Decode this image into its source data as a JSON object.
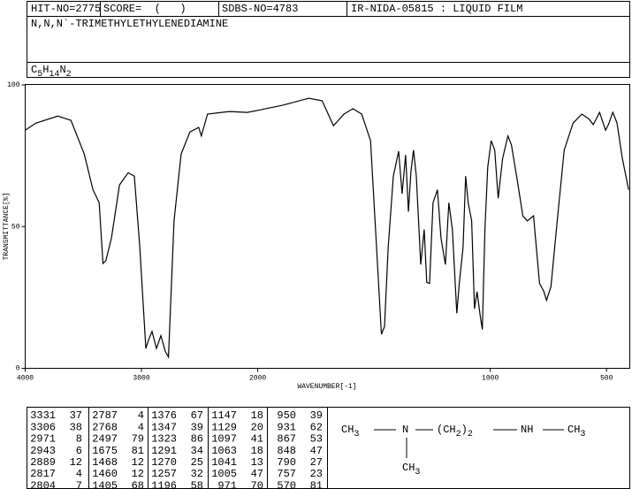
{
  "header": {
    "hit_no": "HIT-NO=2775",
    "score": "SCORE=  (   )",
    "sdbs_no": "SDBS-NO=4783",
    "method": "IR-NIDA-05815 : LIQUID FILM",
    "compound": "N,N,N`-TRIMETHYLETHYLENEDIAMINE",
    "formula": [
      "C",
      "5",
      "H",
      "14",
      "N",
      "2"
    ]
  },
  "chart_data": {
    "type": "line",
    "color": "#000000",
    "xlabel": "WAVENUMBER[-1]",
    "ylabel": "TRANSMITTANCE[%]",
    "xlim": [
      4000,
      400
    ],
    "x_scale_break": 2000,
    "ylim": [
      0,
      100
    ],
    "xticks": [
      4000,
      3000,
      2000,
      1000,
      500
    ],
    "yticks": [
      0,
      50,
      100
    ],
    "grid": false,
    "x": [
      4000,
      3909,
      3720,
      3606,
      3492,
      3417,
      3364,
      3331,
      3306,
      3258,
      3189,
      3114,
      3061,
      3015,
      2962,
      2939,
      2909,
      2871,
      2833,
      2795,
      2768,
      2720,
      2659,
      2583,
      2508,
      2485,
      2432,
      2242,
      2091,
      2000,
      1894,
      1780,
      1723,
      1674,
      1629,
      1591,
      1553,
      1515,
      1485,
      1468,
      1455,
      1439,
      1417,
      1394,
      1379,
      1364,
      1352,
      1341,
      1330,
      1318,
      1299,
      1284,
      1273,
      1261,
      1246,
      1227,
      1212,
      1193,
      1178,
      1163,
      1144,
      1133,
      1117,
      1106,
      1095,
      1080,
      1068,
      1057,
      1042,
      1034,
      1023,
      1011,
      996,
      981,
      966,
      947,
      924,
      909,
      883,
      860,
      841,
      814,
      788,
      769,
      758,
      739,
      712,
      682,
      644,
      606,
      576,
      557,
      530,
      504,
      492,
      473,
      455,
      432,
      405
    ],
    "values": [
      84,
      86.5,
      89,
      87.5,
      75.6,
      63,
      58.4,
      37,
      38,
      46,
      64.7,
      69,
      67.8,
      43,
      7,
      10,
      13,
      7,
      11.5,
      6,
      4,
      52,
      75.6,
      83.4,
      85,
      82,
      89.7,
      90.6,
      90.3,
      91,
      92.8,
      95.3,
      94.4,
      85.6,
      89.7,
      91.6,
      89.7,
      80.3,
      36.6,
      12,
      14.7,
      42.8,
      67.8,
      76.6,
      61.6,
      75.3,
      55.3,
      69.4,
      77,
      67.8,
      36.6,
      49,
      30.3,
      30,
      58.4,
      63,
      46,
      36.6,
      58.4,
      49,
      19.4,
      30.3,
      42.8,
      67.8,
      58.4,
      52,
      21,
      27,
      17.8,
      13.7,
      49,
      71,
      80.3,
      77,
      60,
      74,
      82,
      78.8,
      66,
      53.8,
      52,
      53.8,
      30,
      27,
      24,
      28.8,
      52,
      77,
      86.5,
      89.7,
      88,
      86,
      90.3,
      84,
      86,
      90.3,
      86.6,
      74,
      63
    ]
  },
  "peak_table": {
    "columns": [
      [
        [
          "3331",
          "37"
        ],
        [
          "3306",
          "38"
        ],
        [
          "2971",
          "8"
        ],
        [
          "2943",
          "6"
        ],
        [
          "2889",
          "12"
        ],
        [
          "2817",
          "4"
        ],
        [
          "2804",
          "7"
        ]
      ],
      [
        [
          "2787",
          "4"
        ],
        [
          "2768",
          "4"
        ],
        [
          "2497",
          "79"
        ],
        [
          "1675",
          "81"
        ],
        [
          "1468",
          "12"
        ],
        [
          "1460",
          "12"
        ],
        [
          "1405",
          "68"
        ]
      ],
      [
        [
          "1376",
          "67"
        ],
        [
          "1347",
          "39"
        ],
        [
          "1323",
          "86"
        ],
        [
          "1291",
          "34"
        ],
        [
          "1270",
          "25"
        ],
        [
          "1257",
          "32"
        ],
        [
          "1196",
          "58"
        ]
      ],
      [
        [
          "1147",
          "18"
        ],
        [
          "1129",
          "20"
        ],
        [
          "1097",
          "41"
        ],
        [
          "1063",
          "18"
        ],
        [
          "1041",
          "13"
        ],
        [
          "1005",
          "47"
        ],
        [
          "971",
          "70"
        ]
      ],
      [
        [
          "950",
          "39"
        ],
        [
          "931",
          "62"
        ],
        [
          "867",
          "53"
        ],
        [
          "848",
          "47"
        ],
        [
          "790",
          "27"
        ],
        [
          "757",
          "23"
        ],
        [
          "570",
          "81"
        ]
      ]
    ]
  },
  "structure": {
    "groups": [
      [
        "CH",
        "3"
      ],
      [
        "N"
      ],
      [
        "(CH",
        "2",
        ")",
        "2"
      ],
      [
        "NH"
      ],
      [
        "CH",
        "3"
      ],
      [
        "CH",
        "3"
      ]
    ]
  }
}
